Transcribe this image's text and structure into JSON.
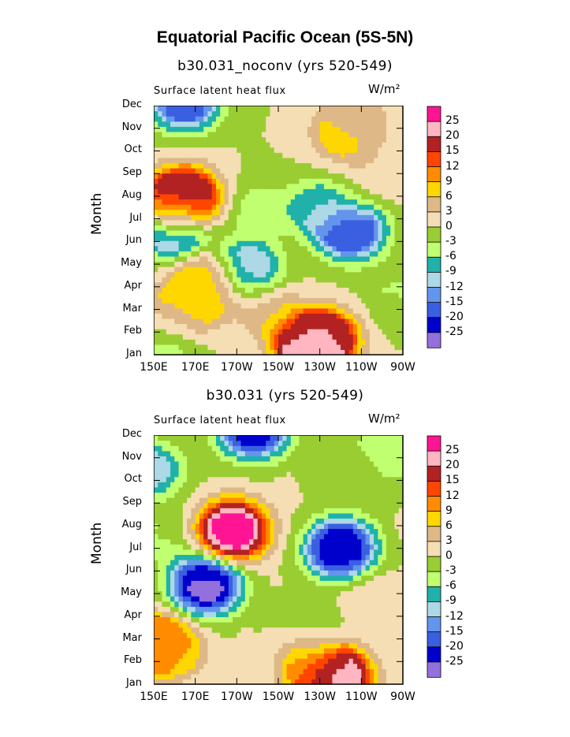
{
  "figure": {
    "title": "Equatorial Pacific Ocean (5S-5N)"
  },
  "chart_data": [
    {
      "type": "heatmap",
      "title": "b30.031_noconv (yrs 520-549)",
      "subtitle": "Surface latent heat flux",
      "units": "W/m²",
      "ylabel": "Month",
      "xlabel": "",
      "x_ticks": [
        "150E",
        "170E",
        "170W",
        "150W",
        "130W",
        "110W",
        "90W"
      ],
      "y_ticks": [
        "Jan",
        "Feb",
        "Mar",
        "Apr",
        "May",
        "Jun",
        "Jul",
        "Aug",
        "Sep",
        "Oct",
        "Nov",
        "Dec"
      ],
      "colorbar_levels": [
        "25",
        "20",
        "15",
        "12",
        "9",
        "6",
        "3",
        "0",
        "-3",
        "-6",
        "-9",
        "-12",
        "-15",
        "-20",
        "-25"
      ],
      "features": [
        {
          "lon": 165,
          "month": 8,
          "value": 22
        },
        {
          "lon": 160,
          "month": 7.6,
          "value": 14
        },
        {
          "lon": 200,
          "month": 7.5,
          "value": -4
        },
        {
          "lon": 245,
          "month": 6.5,
          "value": -20
        },
        {
          "lon": 230,
          "month": 7.5,
          "value": -8
        },
        {
          "lon": 160,
          "month": 6.5,
          "value": -16
        },
        {
          "lon": 195,
          "month": 4.8,
          "value": -13
        },
        {
          "lon": 165,
          "month": 12.2,
          "value": -18
        },
        {
          "lon": 152,
          "month": 2.2,
          "value": 13
        },
        {
          "lon": 152,
          "month": 1.8,
          "value": -15
        },
        {
          "lon": 168,
          "month": 3.2,
          "value": 7
        },
        {
          "lon": 175,
          "month": 4.3,
          "value": 11
        },
        {
          "lon": 225,
          "month": 1.4,
          "value": 24
        },
        {
          "lon": 232,
          "month": 1.7,
          "value": 18
        },
        {
          "lon": 242,
          "month": 10.8,
          "value": 8
        },
        {
          "lon": 248,
          "month": 11.5,
          "value": 3
        },
        {
          "lon": 255,
          "month": 8.5,
          "value": 2
        },
        {
          "lon": 268,
          "month": 3.5,
          "value": -3
        },
        {
          "lon": 190,
          "month": 10.5,
          "value": 0
        },
        {
          "lon": 205,
          "month": 3.0,
          "value": 5
        }
      ]
    },
    {
      "type": "heatmap",
      "title": "b30.031 (yrs 520-549)",
      "subtitle": "Surface latent heat flux",
      "units": "W/m²",
      "ylabel": "Month",
      "xlabel": "",
      "x_ticks": [
        "150E",
        "170E",
        "170W",
        "150W",
        "130W",
        "110W",
        "90W"
      ],
      "y_ticks": [
        "Jan",
        "Feb",
        "Mar",
        "Apr",
        "May",
        "Jun",
        "Jul",
        "Aug",
        "Sep",
        "Oct",
        "Nov",
        "Dec"
      ],
      "colorbar_levels": [
        "25",
        "20",
        "15",
        "12",
        "9",
        "6",
        "3",
        "0",
        "-3",
        "-6",
        "-9",
        "-12",
        "-15",
        "-20",
        "-25"
      ],
      "features": [
        {
          "lon": 188,
          "month": 7.8,
          "value": 30
        },
        {
          "lon": 175,
          "month": 5.4,
          "value": -26
        },
        {
          "lon": 240,
          "month": 7.0,
          "value": -25
        },
        {
          "lon": 198,
          "month": 12.3,
          "value": -23
        },
        {
          "lon": 153,
          "month": 2.8,
          "value": 16
        },
        {
          "lon": 158,
          "month": 2.5,
          "value": 5
        },
        {
          "lon": 238,
          "month": 1.4,
          "value": 26
        },
        {
          "lon": 225,
          "month": 1.8,
          "value": 8
        },
        {
          "lon": 253,
          "month": 5.0,
          "value": 3
        },
        {
          "lon": 262,
          "month": 11.3,
          "value": -6
        },
        {
          "lon": 248,
          "month": 10.5,
          "value": 0
        },
        {
          "lon": 148,
          "month": 10.5,
          "value": -10
        },
        {
          "lon": 155,
          "month": 7.5,
          "value": -3
        },
        {
          "lon": 230,
          "month": 3.5,
          "value": -2
        }
      ]
    }
  ]
}
